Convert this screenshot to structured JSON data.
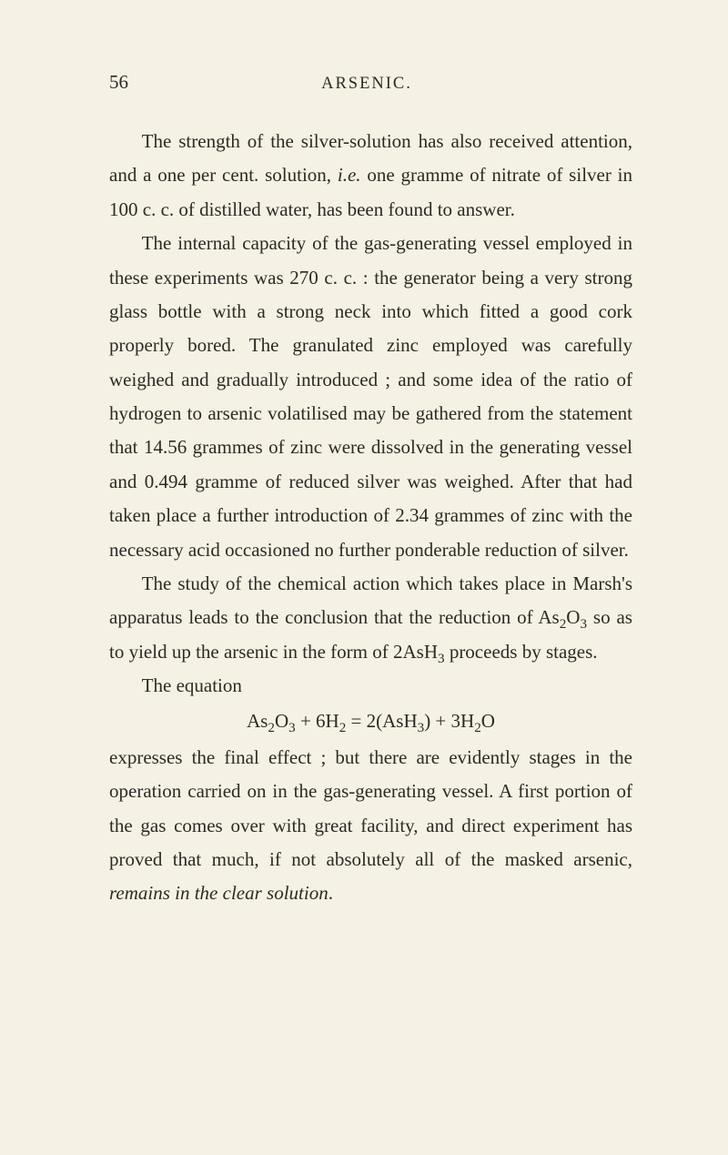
{
  "page_number": "56",
  "running_head": "ARSENIC.",
  "paragraphs": {
    "p1": "The strength of the silver-solution has also received attention, and a one per cent. solution, i.e. one gramme of nitrate of silver in 100 c. c. of distilled water, has been found to answer.",
    "p2": "The internal capacity of the gas-generating vessel employed in these experiments was 270 c. c. : the generator being a very strong glass bottle with a strong neck into which fitted a good cork properly bored. The granulated zinc employed was carefully weighed and gradually introduced ; and some idea of the ratio of hydrogen to arsenic volatilised may be gathered from the statement that 14.56 grammes of zinc were dissolved in the generating vessel and 0.494 gramme of reduced silver was weighed. After that had taken place a further introduction of 2.34 grammes of zinc with the necessary acid occasioned no further ponderable reduction of silver.",
    "p3": "The study of the chemical action which takes place in Marsh's apparatus leads to the conclusion that the reduction of As₂O₃ so as to yield up the arsenic in the form of 2AsH₃ proceeds by stages.",
    "p4": "The equation",
    "eq": "As₂O₃ + 6H₂ = 2(AsH₃) + 3H₂O",
    "p5": "expresses the final effect ; but there are evidently stages in the operation carried on in the gas-generating vessel. A first portion of the gas comes over with great facility, and direct experiment has proved that much, if not absolutely all of the masked arsenic, remains in the clear solution."
  }
}
